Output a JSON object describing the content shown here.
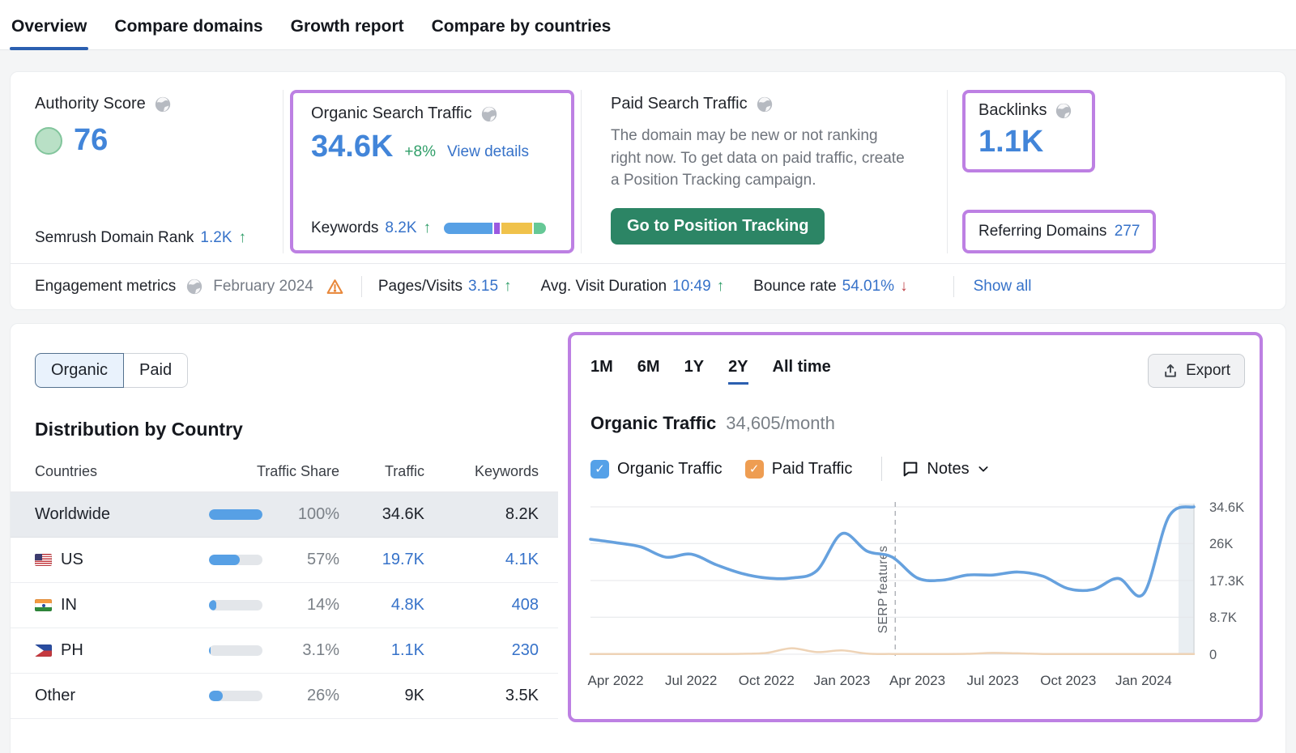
{
  "nav": {
    "tabs": [
      {
        "label": "Overview",
        "active": true
      },
      {
        "label": "Compare domains",
        "active": false
      },
      {
        "label": "Growth report",
        "active": false
      },
      {
        "label": "Compare by countries",
        "active": false
      }
    ]
  },
  "summary": {
    "authority": {
      "title": "Authority Score",
      "score": "76",
      "rank_label": "Semrush Domain Rank",
      "rank_value": "1.2K",
      "rank_arrow": "↑"
    },
    "organic": {
      "title": "Organic Search Traffic",
      "value": "34.6K",
      "change": "+8%",
      "details_label": "View details",
      "keywords_label": "Keywords",
      "keywords_value": "8.2K",
      "keywords_arrow": "↑",
      "bar_segments": [
        {
          "color": "#57a0e5",
          "pct": 50
        },
        {
          "color": "#9b59e0",
          "pct": 5.5
        },
        {
          "color": "#f0c24b",
          "pct": 32
        },
        {
          "color": "#66c896",
          "pct": 12.5
        }
      ]
    },
    "paid": {
      "title": "Paid Search Traffic",
      "message": "The domain may be new or not ranking right now. To get data on paid traffic, create a Position Tracking campaign.",
      "button": "Go to Position Tracking"
    },
    "backlinks": {
      "title": "Backlinks",
      "value": "1.1K",
      "referring_label": "Referring Domains",
      "referring_value": "277"
    }
  },
  "engagement": {
    "label": "Engagement metrics",
    "period": "February 2024",
    "metrics": [
      {
        "label": "Pages/Visits",
        "value": "3.15",
        "arrow": "↑",
        "dir": "up"
      },
      {
        "label": "Avg. Visit Duration",
        "value": "10:49",
        "arrow": "↑",
        "dir": "up"
      },
      {
        "label": "Bounce rate",
        "value": "54.01%",
        "arrow": "↓",
        "dir": "down"
      }
    ],
    "show_all": "Show all"
  },
  "distribution": {
    "toggle": {
      "organic": "Organic",
      "paid": "Paid",
      "active": "Organic"
    },
    "title": "Distribution by Country",
    "headers": {
      "countries": "Countries",
      "share": "Traffic Share",
      "traffic": "Traffic",
      "keywords": "Keywords"
    },
    "rows": [
      {
        "country": "Worldwide",
        "flag": null,
        "share": "100%",
        "share_pct": 100,
        "traffic": "34.6K",
        "keywords": "8.2K",
        "selected": true,
        "links": false
      },
      {
        "country": "US",
        "flag": "us",
        "share": "57%",
        "share_pct": 57,
        "traffic": "19.7K",
        "keywords": "4.1K",
        "selected": false,
        "links": true
      },
      {
        "country": "IN",
        "flag": "in",
        "share": "14%",
        "share_pct": 14,
        "traffic": "4.8K",
        "keywords": "408",
        "selected": false,
        "links": true
      },
      {
        "country": "PH",
        "flag": "ph",
        "share": "3.1%",
        "share_pct": 3.1,
        "traffic": "1.1K",
        "keywords": "230",
        "selected": false,
        "links": true
      },
      {
        "country": "Other",
        "flag": null,
        "share": "26%",
        "share_pct": 26,
        "traffic": "9K",
        "keywords": "3.5K",
        "selected": false,
        "links": false
      }
    ]
  },
  "traffic_panel": {
    "ranges": [
      "1M",
      "6M",
      "1Y",
      "2Y",
      "All time"
    ],
    "active_range": "2Y",
    "export_label": "Export",
    "title": "Organic Traffic",
    "subtitle": "34,605/month",
    "legend": [
      {
        "label": "Organic Traffic",
        "color": "#55a1e8",
        "checked": true
      },
      {
        "label": "Paid Traffic",
        "color": "#ee9d52",
        "checked": true
      }
    ],
    "notes_label": "Notes"
  },
  "chart_data": {
    "type": "line",
    "title": "Organic Traffic",
    "subtitle": "34,605/month",
    "x": [
      "Mar 2022",
      "Apr 2022",
      "May 2022",
      "Jun 2022",
      "Jul 2022",
      "Aug 2022",
      "Sep 2022",
      "Oct 2022",
      "Nov 2022",
      "Dec 2022",
      "Jan 2023",
      "Feb 2023",
      "Mar 2023",
      "Apr 2023",
      "May 2023",
      "Jun 2023",
      "Jul 2023",
      "Aug 2023",
      "Sep 2023",
      "Oct 2023",
      "Nov 2023",
      "Dec 2023",
      "Jan 2024",
      "Feb 2024",
      "Mar 2024"
    ],
    "x_ticks": [
      {
        "index": 1,
        "label": "Apr 2022"
      },
      {
        "index": 4,
        "label": "Jul 2022"
      },
      {
        "index": 7,
        "label": "Oct 2022"
      },
      {
        "index": 10,
        "label": "Jan 2023"
      },
      {
        "index": 13,
        "label": "Apr 2023"
      },
      {
        "index": 16,
        "label": "Jul 2023"
      },
      {
        "index": 19,
        "label": "Oct 2023"
      },
      {
        "index": 22,
        "label": "Jan 2024"
      }
    ],
    "y_ticks": [
      {
        "label": "34.6K",
        "value": 34600
      },
      {
        "label": "26K",
        "value": 26000
      },
      {
        "label": "17.3K",
        "value": 17300
      },
      {
        "label": "8.7K",
        "value": 8700
      },
      {
        "label": "0",
        "value": 0
      }
    ],
    "ylim": [
      0,
      34600
    ],
    "grid": true,
    "legend_position": "top",
    "series": [
      {
        "name": "Organic Traffic",
        "color": "#66a1de",
        "values": [
          27000,
          26200,
          25200,
          22800,
          23500,
          21000,
          19000,
          17900,
          17900,
          19600,
          28300,
          24200,
          22800,
          17900,
          17400,
          18600,
          18600,
          19300,
          18300,
          15400,
          15200,
          17800,
          14200,
          32300,
          34600
        ]
      },
      {
        "name": "Paid Traffic",
        "color": "#eed3b6",
        "values": [
          50,
          50,
          50,
          50,
          50,
          50,
          100,
          300,
          1400,
          500,
          900,
          150,
          50,
          50,
          50,
          100,
          300,
          200,
          50,
          50,
          50,
          50,
          50,
          50,
          50
        ]
      }
    ],
    "annotation": {
      "label": "SERP features",
      "x_fraction": 0.505
    }
  }
}
